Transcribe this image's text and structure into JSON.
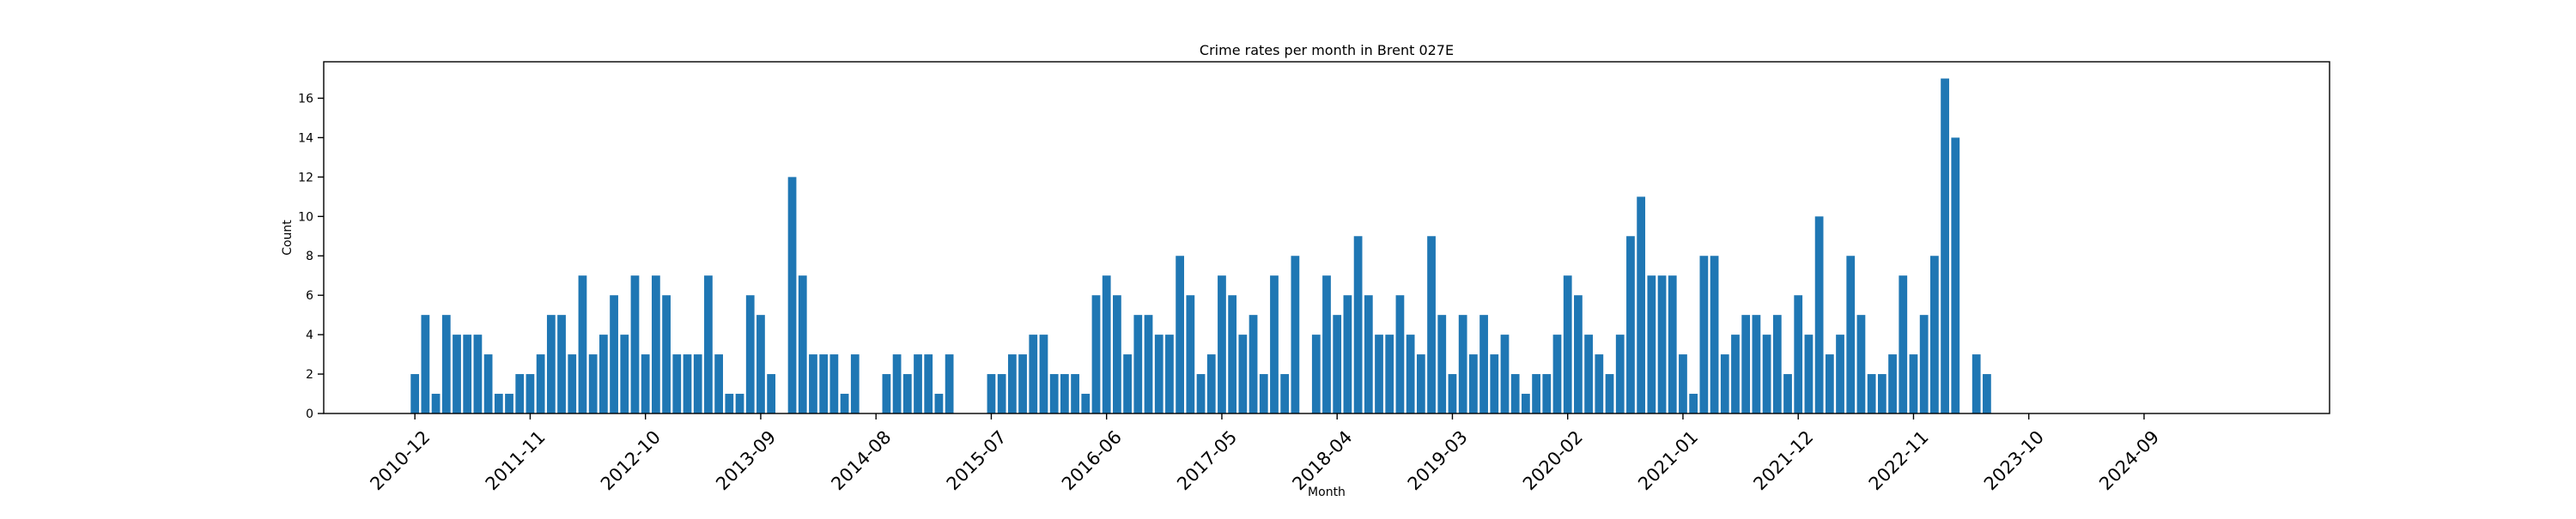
{
  "chart_data": {
    "type": "bar",
    "title": "Crime rates per month in Brent 027E",
    "xlabel": "Month",
    "ylabel": "Count",
    "ylim": [
      0,
      17.85
    ],
    "yticks": [
      0,
      2,
      4,
      6,
      8,
      10,
      12,
      14,
      16
    ],
    "xlim": [
      -8.7,
      182.7
    ],
    "xticks": [
      {
        "label": "2010-12",
        "x": 0
      },
      {
        "label": "2011-11",
        "x": 11
      },
      {
        "label": "2012-10",
        "x": 22
      },
      {
        "label": "2013-09",
        "x": 33
      },
      {
        "label": "2014-08",
        "x": 44
      },
      {
        "label": "2015-07",
        "x": 55
      },
      {
        "label": "2016-06",
        "x": 66
      },
      {
        "label": "2017-05",
        "x": 77
      },
      {
        "label": "2018-04",
        "x": 88
      },
      {
        "label": "2019-03",
        "x": 99
      },
      {
        "label": "2020-02",
        "x": 110
      },
      {
        "label": "2021-01",
        "x": 121
      },
      {
        "label": "2021-12",
        "x": 132
      },
      {
        "label": "2022-11",
        "x": 143
      },
      {
        "label": "2023-10",
        "x": 154
      },
      {
        "label": "2024-09",
        "x": 165
      }
    ],
    "bar_color": "#1f77b4",
    "grid": false,
    "values": [
      2,
      5,
      1,
      5,
      4,
      4,
      4,
      3,
      1,
      1,
      2,
      2,
      3,
      5,
      5,
      3,
      7,
      3,
      4,
      6,
      4,
      7,
      3,
      7,
      6,
      3,
      3,
      3,
      7,
      3,
      1,
      1,
      6,
      5,
      2,
      0,
      12,
      7,
      3,
      3,
      3,
      1,
      3,
      0,
      0,
      2,
      3,
      2,
      3,
      3,
      1,
      3,
      0,
      0,
      0,
      2,
      2,
      3,
      3,
      4,
      4,
      2,
      2,
      2,
      1,
      6,
      7,
      6,
      3,
      5,
      5,
      4,
      4,
      8,
      6,
      2,
      3,
      7,
      6,
      4,
      5,
      2,
      7,
      2,
      8,
      0,
      4,
      7,
      5,
      6,
      9,
      6,
      4,
      4,
      6,
      4,
      3,
      9,
      5,
      2,
      5,
      3,
      5,
      3,
      4,
      2,
      1,
      2,
      2,
      4,
      7,
      6,
      4,
      3,
      2,
      4,
      9,
      11,
      7,
      7,
      7,
      3,
      1,
      8,
      8,
      3,
      4,
      5,
      5,
      4,
      5,
      2,
      6,
      4,
      10,
      3,
      4,
      8,
      5,
      2,
      2,
      3,
      7,
      3,
      5,
      8,
      17,
      14,
      0,
      3,
      2
    ]
  }
}
